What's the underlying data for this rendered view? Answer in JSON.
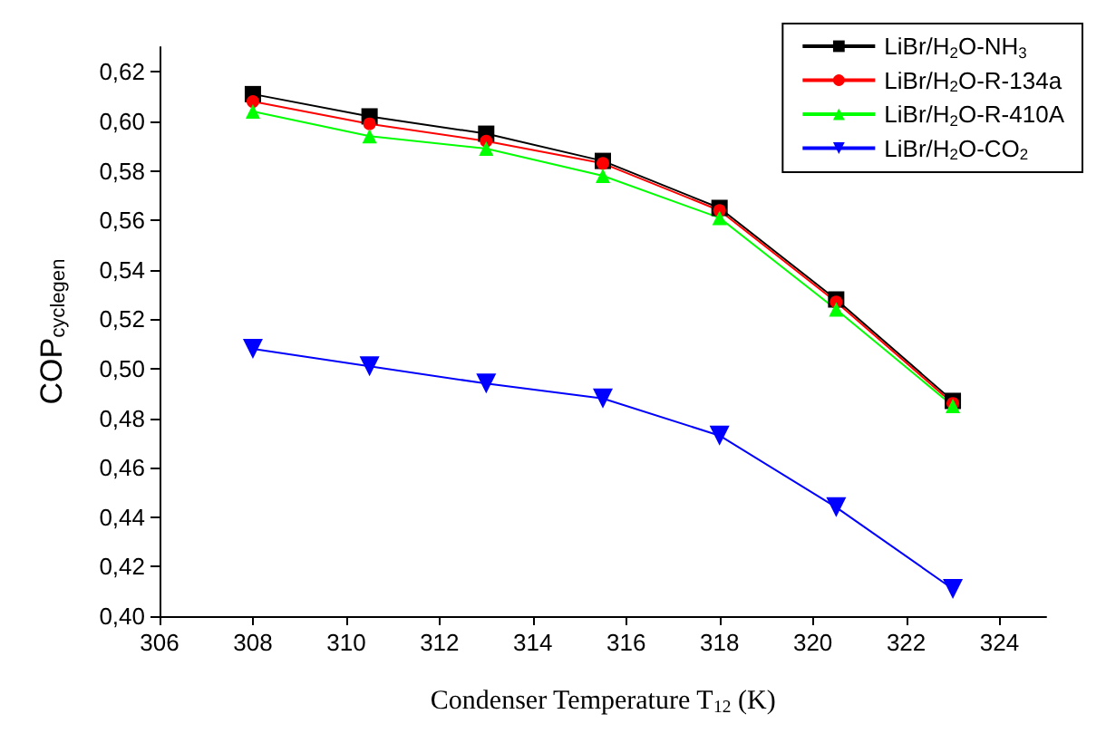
{
  "chart_data": {
    "type": "line",
    "xlabel": "Condenser Temperature T$_{12}$ (K)",
    "ylabel": "COP$_{cyclegen}$",
    "x": [
      308,
      310.5,
      313,
      315.5,
      318,
      320.5,
      323
    ],
    "series": [
      {
        "name": "LiBr/H$_{2}$O-NH$_{3}$",
        "color": "#000000",
        "marker": "square",
        "values": [
          0.611,
          0.602,
          0.595,
          0.584,
          0.565,
          0.528,
          0.487
        ]
      },
      {
        "name": "LiBr/H$_{2}$O-R-134a",
        "color": "#ff0000",
        "marker": "circle",
        "values": [
          0.608,
          0.599,
          0.592,
          0.583,
          0.564,
          0.527,
          0.486
        ]
      },
      {
        "name": "LiBr/H$_{2}$O-R-410A",
        "color": "#00ff00",
        "marker": "triangle",
        "values": [
          0.604,
          0.594,
          0.589,
          0.578,
          0.561,
          0.524,
          0.485
        ]
      },
      {
        "name": "LiBr/H$_{2}$O-CO$_{2}$",
        "color": "#0000ff",
        "marker": "triangle_down",
        "values": [
          0.508,
          0.501,
          0.494,
          0.488,
          0.473,
          0.444,
          0.411
        ]
      }
    ],
    "xlim": [
      306,
      325
    ],
    "xticks": [
      306,
      308,
      310,
      312,
      314,
      316,
      318,
      320,
      322,
      324
    ],
    "ylim": [
      0.4,
      0.63
    ],
    "yticks": [
      {
        "value": 0.4,
        "label": "0,40"
      },
      {
        "value": 0.42,
        "label": "0,42"
      },
      {
        "value": 0.44,
        "label": "0,44"
      },
      {
        "value": 0.46,
        "label": "0,46"
      },
      {
        "value": 0.48,
        "label": "0,48"
      },
      {
        "value": 0.5,
        "label": "0,50"
      },
      {
        "value": 0.52,
        "label": "0,52"
      },
      {
        "value": 0.54,
        "label": "0,54"
      },
      {
        "value": 0.56,
        "label": "0,56"
      },
      {
        "value": 0.58,
        "label": "0,58"
      },
      {
        "value": 0.6,
        "label": "0,60"
      },
      {
        "value": 0.62,
        "label": "0,62"
      }
    ],
    "grid": false,
    "legend": "top right",
    "line_style": "solid"
  }
}
